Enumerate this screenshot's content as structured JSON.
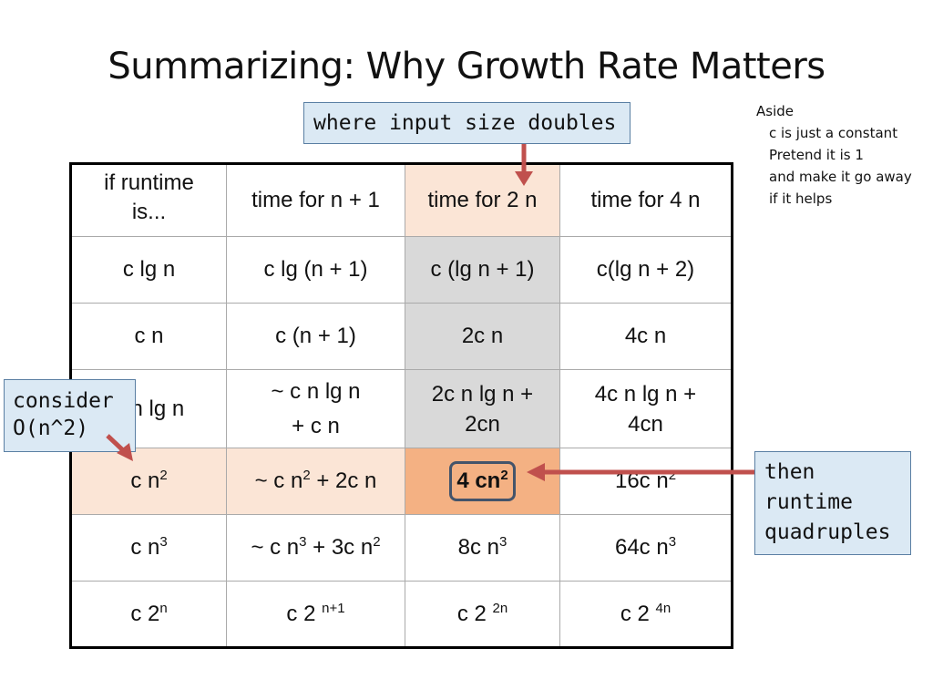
{
  "title": "Summarizing: Why Growth Rate Matters",
  "aside": {
    "heading": "Aside",
    "lines": [
      "c is just a constant",
      "Pretend it is 1",
      "and make it go away",
      "if it helps"
    ]
  },
  "callouts": {
    "doubles": "where input size doubles",
    "consider_l1": "consider",
    "consider_l2": "O(n^2)",
    "then_l1": "then",
    "then_l2": "runtime",
    "then_l3": "quadruples"
  },
  "table": {
    "headers": [
      "if runtime is...",
      "time for n + 1",
      "time for 2 n",
      "time for 4 n"
    ],
    "r1": [
      "c lg n",
      "c lg (n + 1)",
      "c (lg n + 1)",
      "c(lg n + 2)"
    ],
    "r2": [
      "c n",
      "c (n + 1)",
      "2c n",
      "4c n"
    ],
    "r3": {
      "c0": "c n lg n",
      "c1a": "~ c n lg n",
      "c1b": "+  c n",
      "c2": "2c n lg n + 2cn",
      "c3": "4c n lg n + 4cn"
    },
    "r4": {
      "c0_base": "c n",
      "c0_exp": "2",
      "c1_a": "~ c n",
      "c1_exp": "2",
      "c1_b": " + 2c n",
      "c2_a": "4 ",
      "c2_b": "cn",
      "c2_exp": "2",
      "c3_base": "16c n",
      "c3_exp": "2"
    },
    "r5": {
      "c0_base": "c n",
      "c0_exp": "3",
      "c1_a": "~ c n",
      "c1_exp1": "3",
      "c1_b": " + 3c n",
      "c1_exp2": "2",
      "c2_base": "8c n",
      "c2_exp": "3",
      "c3_base": "64c n",
      "c3_exp": "3"
    },
    "r6": {
      "c0_base": "c 2",
      "c0_exp": "n",
      "c1_base": "c 2 ",
      "c1_exp": "n+1",
      "c2_base": "c 2 ",
      "c2_exp": "2n",
      "c3_base": "c 2 ",
      "c3_exp": "4n"
    }
  },
  "colors": {
    "arrow": "#c0504d",
    "callout_fill": "#dbe9f4",
    "highlight_peach": "#fbe5d6",
    "highlight_gray": "#d9d9d9",
    "highlight_orange": "#f4b183"
  }
}
